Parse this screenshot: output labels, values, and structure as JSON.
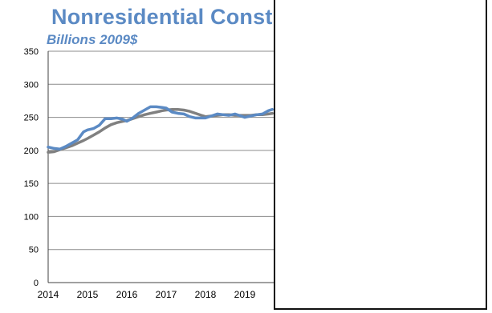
{
  "chart_data": {
    "type": "line",
    "title": "Nonresidential Constru",
    "subtitle": "Billions 2009$",
    "xlabel": "",
    "ylabel": "",
    "xlim": [
      2014.0,
      2019.7
    ],
    "ylim": [
      0,
      350
    ],
    "yticks": [
      0,
      50,
      100,
      150,
      200,
      250,
      300,
      350
    ],
    "xticks": [
      "2014",
      "2015",
      "2016",
      "2017",
      "2018",
      "2019"
    ],
    "grid": true,
    "series": [
      {
        "color": "#5b8ac4",
        "x": [
          2014.0,
          2014.15,
          2014.3,
          2014.45,
          2014.6,
          2014.75,
          2014.9,
          2015.0,
          2015.15,
          2015.3,
          2015.45,
          2015.6,
          2015.75,
          2015.9,
          2016.0,
          2016.15,
          2016.3,
          2016.45,
          2016.6,
          2016.75,
          2016.9,
          2017.0,
          2017.15,
          2017.3,
          2017.45,
          2017.6,
          2017.75,
          2017.9,
          2018.0,
          2018.15,
          2018.3,
          2018.45,
          2018.6,
          2018.75,
          2018.9,
          2019.0,
          2019.15,
          2019.3,
          2019.45,
          2019.6,
          2019.7
        ],
        "y": [
          205,
          203,
          202,
          206,
          211,
          216,
          228,
          231,
          233,
          238,
          248,
          248,
          249,
          247,
          244,
          249,
          256,
          261,
          266,
          266,
          265,
          264,
          258,
          256,
          255,
          251,
          249,
          249,
          249,
          252,
          255,
          254,
          253,
          255,
          252,
          250,
          252,
          254,
          255,
          260,
          262
        ]
      },
      {
        "color": "#808080",
        "x": [
          2014.0,
          2014.15,
          2014.3,
          2014.45,
          2014.6,
          2014.75,
          2014.9,
          2015.0,
          2015.15,
          2015.3,
          2015.45,
          2015.6,
          2015.75,
          2015.9,
          2016.0,
          2016.15,
          2016.3,
          2016.45,
          2016.6,
          2016.75,
          2016.9,
          2017.0,
          2017.15,
          2017.3,
          2017.45,
          2017.6,
          2017.75,
          2017.9,
          2018.0,
          2018.15,
          2018.3,
          2018.45,
          2018.6,
          2018.75,
          2018.9,
          2019.0,
          2019.15,
          2019.3,
          2019.45,
          2019.6,
          2019.7
        ],
        "y": [
          197,
          198,
          201,
          204,
          207,
          211,
          215,
          218,
          223,
          228,
          234,
          239,
          242,
          244,
          245,
          248,
          251,
          254,
          256,
          258,
          260,
          261,
          262,
          262,
          261,
          259,
          256,
          253,
          251,
          252,
          253,
          254,
          254,
          253,
          253,
          253,
          253,
          254,
          254,
          255,
          256
        ]
      }
    ]
  }
}
